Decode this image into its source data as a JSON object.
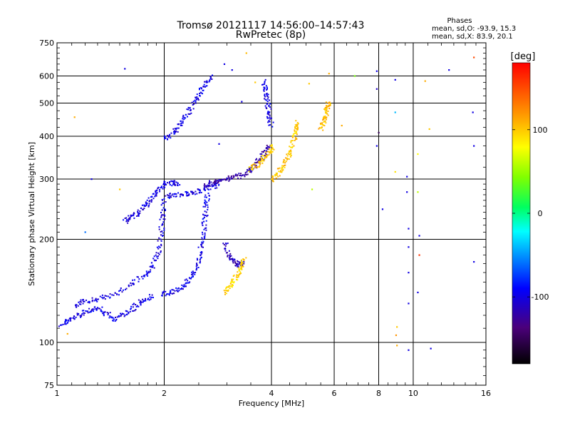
{
  "chart_data": {
    "type": "scatter",
    "title": "Tromsø 20121117 14:56:00–14:57:43",
    "subtitle": "RwPretec (8p)",
    "xlabel": "Frequency [MHz]",
    "ylabel": "Stationary phase Virtual Height [km]",
    "x_scale": "log",
    "y_scale": "log",
    "xlim": [
      1,
      16
    ],
    "ylim": [
      75,
      750
    ],
    "x_ticks": [
      1,
      2,
      4,
      6,
      8,
      10,
      16
    ],
    "y_ticks": [
      75,
      100,
      200,
      300,
      400,
      500,
      600,
      750
    ],
    "grid": true,
    "stats": {
      "heading": "Phases",
      "line_o": "mean, sd,O: -93.9, 15.3",
      "line_x": "mean, sd,X:  83.9, 20.1"
    },
    "colorbar": {
      "label": "[deg]",
      "min": -180,
      "max": 180,
      "ticks": [
        100,
        0,
        -100
      ]
    },
    "traces": [
      {
        "phase": -100,
        "points": [
          [
            1.03,
            113
          ],
          [
            1.08,
            116
          ],
          [
            1.15,
            120
          ],
          [
            1.22,
            124
          ],
          [
            1.3,
            126
          ],
          [
            1.38,
            121
          ],
          [
            1.45,
            117
          ],
          [
            1.55,
            121
          ],
          [
            1.65,
            127
          ],
          [
            1.75,
            133
          ],
          [
            1.85,
            136
          ]
        ]
      },
      {
        "phase": -100,
        "points": [
          [
            1.12,
            128
          ],
          [
            1.2,
            132
          ],
          [
            1.3,
            134
          ],
          [
            1.45,
            138
          ],
          [
            1.6,
            147
          ],
          [
            1.75,
            156
          ],
          [
            1.85,
            165
          ],
          [
            1.92,
            180
          ],
          [
            1.96,
            205
          ],
          [
            1.98,
            230
          ],
          [
            2.0,
            260
          ]
        ]
      },
      {
        "phase": -98,
        "points": [
          [
            1.95,
            138
          ],
          [
            2.1,
            140
          ],
          [
            2.25,
            145
          ],
          [
            2.35,
            152
          ],
          [
            2.45,
            162
          ],
          [
            2.52,
            180
          ],
          [
            2.56,
            200
          ],
          [
            2.6,
            225
          ],
          [
            2.62,
            250
          ],
          [
            2.65,
            275
          ]
        ]
      },
      {
        "phase": -102,
        "points": [
          [
            1.55,
            225
          ],
          [
            1.62,
            232
          ],
          [
            1.7,
            240
          ],
          [
            1.78,
            252
          ],
          [
            1.85,
            265
          ],
          [
            1.92,
            280
          ],
          [
            2.0,
            290
          ],
          [
            2.1,
            292
          ],
          [
            2.2,
            290
          ]
        ]
      },
      {
        "phase": -100,
        "points": [
          [
            2.0,
            265
          ],
          [
            2.15,
            270
          ],
          [
            2.3,
            272
          ],
          [
            2.45,
            275
          ],
          [
            2.6,
            280
          ],
          [
            2.75,
            286
          ],
          [
            2.85,
            292
          ]
        ]
      },
      {
        "phase": -100,
        "points": [
          [
            2.0,
            395
          ],
          [
            2.1,
            405
          ],
          [
            2.2,
            425
          ],
          [
            2.3,
            455
          ],
          [
            2.4,
            490
          ],
          [
            2.5,
            530
          ],
          [
            2.6,
            565
          ],
          [
            2.7,
            600
          ]
        ]
      },
      {
        "phase": -120,
        "points": [
          [
            2.6,
            290
          ],
          [
            2.8,
            295
          ],
          [
            3.0,
            300
          ],
          [
            3.2,
            305
          ],
          [
            3.4,
            312
          ],
          [
            3.55,
            325
          ],
          [
            3.7,
            340
          ],
          [
            3.85,
            360
          ],
          [
            3.95,
            380
          ]
        ]
      },
      {
        "phase": -115,
        "points": [
          [
            2.95,
            195
          ],
          [
            3.05,
            178
          ],
          [
            3.15,
            172
          ],
          [
            3.25,
            168
          ],
          [
            3.35,
            170
          ]
        ]
      },
      {
        "phase": 95,
        "points": [
          [
            2.95,
            140
          ],
          [
            3.05,
            145
          ],
          [
            3.15,
            152
          ],
          [
            3.25,
            160
          ],
          [
            3.3,
            168
          ],
          [
            3.35,
            175
          ]
        ]
      },
      {
        "phase": 100,
        "points": [
          [
            3.5,
            320
          ],
          [
            3.65,
            330
          ],
          [
            3.8,
            345
          ],
          [
            3.95,
            360
          ],
          [
            4.05,
            375
          ]
        ]
      },
      {
        "phase": 100,
        "points": [
          [
            4.0,
            300
          ],
          [
            4.15,
            310
          ],
          [
            4.3,
            325
          ],
          [
            4.45,
            345
          ],
          [
            4.55,
            370
          ],
          [
            4.65,
            400
          ],
          [
            4.7,
            420
          ],
          [
            4.75,
            440
          ]
        ]
      },
      {
        "phase": 105,
        "points": [
          [
            5.5,
            420
          ],
          [
            5.6,
            440
          ],
          [
            5.7,
            465
          ],
          [
            5.75,
            485
          ],
          [
            5.8,
            500
          ]
        ]
      },
      {
        "phase": -100,
        "points": [
          [
            3.8,
            580
          ],
          [
            3.85,
            540
          ],
          [
            3.9,
            500
          ],
          [
            3.95,
            460
          ],
          [
            4.0,
            430
          ]
        ]
      }
    ],
    "points": [
      {
        "x": 1.25,
        "y": 300,
        "phase": -100
      },
      {
        "x": 1.55,
        "y": 630,
        "phase": -100
      },
      {
        "x": 1.2,
        "y": 210,
        "phase": -60
      },
      {
        "x": 1.12,
        "y": 455,
        "phase": 110
      },
      {
        "x": 2.95,
        "y": 650,
        "phase": -100
      },
      {
        "x": 3.1,
        "y": 625,
        "phase": -100
      },
      {
        "x": 3.3,
        "y": 505,
        "phase": -100
      },
      {
        "x": 3.4,
        "y": 700,
        "phase": 105
      },
      {
        "x": 3.6,
        "y": 575,
        "phase": 100
      },
      {
        "x": 5.1,
        "y": 570,
        "phase": 100
      },
      {
        "x": 5.8,
        "y": 610,
        "phase": 110
      },
      {
        "x": 6.85,
        "y": 600,
        "phase": 40
      },
      {
        "x": 7.9,
        "y": 620,
        "phase": -100
      },
      {
        "x": 7.9,
        "y": 550,
        "phase": -110
      },
      {
        "x": 8.9,
        "y": 585,
        "phase": -100
      },
      {
        "x": 8.9,
        "y": 470,
        "phase": -40
      },
      {
        "x": 8.9,
        "y": 315,
        "phase": 90
      },
      {
        "x": 8.0,
        "y": 410,
        "phase": -150
      },
      {
        "x": 7.9,
        "y": 375,
        "phase": -100
      },
      {
        "x": 8.2,
        "y": 245,
        "phase": -100
      },
      {
        "x": 9.6,
        "y": 305,
        "phase": -100
      },
      {
        "x": 9.6,
        "y": 275,
        "phase": -100
      },
      {
        "x": 9.7,
        "y": 215,
        "phase": -100
      },
      {
        "x": 9.7,
        "y": 190,
        "phase": -100
      },
      {
        "x": 9.7,
        "y": 160,
        "phase": -100
      },
      {
        "x": 9.7,
        "y": 130,
        "phase": -100
      },
      {
        "x": 9.7,
        "y": 95,
        "phase": -100
      },
      {
        "x": 10.3,
        "y": 355,
        "phase": 80
      },
      {
        "x": 10.3,
        "y": 275,
        "phase": 60
      },
      {
        "x": 10.4,
        "y": 205,
        "phase": -100
      },
      {
        "x": 10.4,
        "y": 180,
        "phase": 160
      },
      {
        "x": 10.3,
        "y": 140,
        "phase": -100
      },
      {
        "x": 10.8,
        "y": 580,
        "phase": 110
      },
      {
        "x": 11.1,
        "y": 420,
        "phase": 100
      },
      {
        "x": 11.2,
        "y": 96,
        "phase": -100
      },
      {
        "x": 12.6,
        "y": 625,
        "phase": -100
      },
      {
        "x": 14.8,
        "y": 680,
        "phase": 150
      },
      {
        "x": 14.7,
        "y": 470,
        "phase": -100
      },
      {
        "x": 14.8,
        "y": 375,
        "phase": -100
      },
      {
        "x": 14.8,
        "y": 172,
        "phase": -100
      },
      {
        "x": 9.0,
        "y": 111,
        "phase": 100
      },
      {
        "x": 8.95,
        "y": 105,
        "phase": 120
      },
      {
        "x": 9.0,
        "y": 98,
        "phase": 110
      },
      {
        "x": 1.07,
        "y": 106,
        "phase": 110
      },
      {
        "x": 1.5,
        "y": 280,
        "phase": 100
      },
      {
        "x": 2.85,
        "y": 380,
        "phase": -100
      },
      {
        "x": 6.3,
        "y": 430,
        "phase": 110
      },
      {
        "x": 5.2,
        "y": 280,
        "phase": 60
      }
    ]
  }
}
